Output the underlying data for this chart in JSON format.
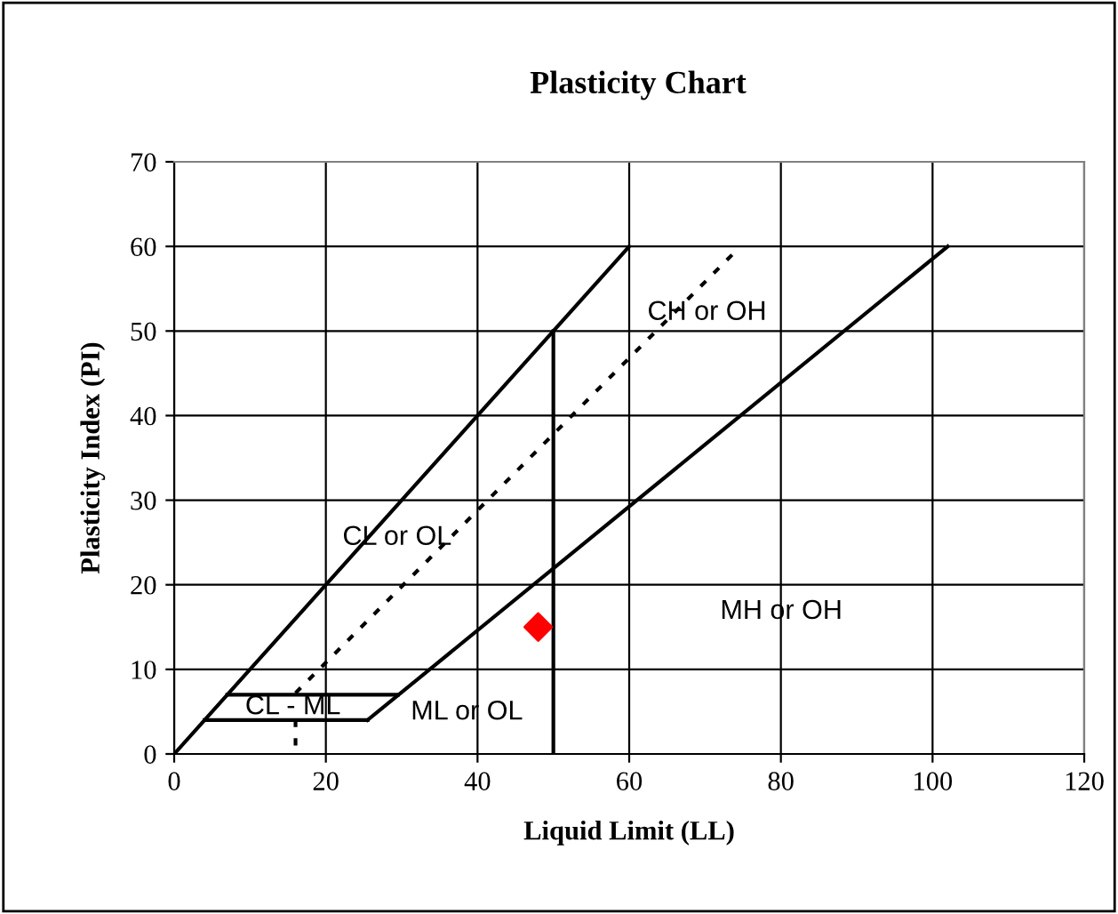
{
  "chart_data": {
    "type": "line",
    "title": "Plasticity Chart",
    "xlabel": "Liquid Limit (LL)",
    "ylabel": "Plasticity Index (PI)",
    "xlim": [
      0,
      120
    ],
    "xticks": [
      0,
      20,
      40,
      60,
      80,
      100,
      120
    ],
    "ylim": [
      0,
      70
    ],
    "yticks": [
      0,
      10,
      20,
      30,
      40,
      50,
      60,
      70
    ],
    "grid": true,
    "legend": false,
    "series": [
      {
        "type": "line",
        "color": "#000000",
        "line_style": "solid",
        "marker": "none",
        "x": [
          0,
          60
        ],
        "values": [
          0,
          60
        ]
      },
      {
        "type": "line",
        "color": "#000000",
        "line_style": "solid",
        "marker": "none",
        "x": [
          4,
          25.5
        ],
        "values": [
          4,
          4
        ]
      },
      {
        "type": "line",
        "color": "#000000",
        "line_style": "solid",
        "marker": "none",
        "x": [
          7,
          29.5
        ],
        "values": [
          7,
          7
        ]
      },
      {
        "type": "line",
        "color": "#000000",
        "line_style": "solid",
        "marker": "none",
        "x": [
          25.5,
          102
        ],
        "values": [
          4,
          60
        ]
      },
      {
        "type": "line",
        "color": "#000000",
        "line_style": "solid",
        "marker": "none",
        "x": [
          50,
          50
        ],
        "values": [
          0,
          50
        ]
      },
      {
        "type": "line",
        "color": "#000000",
        "line_style": "dotted",
        "marker": "none",
        "x": [
          16,
          74
        ],
        "values": [
          7.2,
          59.4
        ]
      },
      {
        "type": "line",
        "color": "#000000",
        "line_style": "dotted",
        "marker": "none",
        "x": [
          16,
          16
        ],
        "values": [
          1,
          4
        ]
      },
      {
        "type": "scatter",
        "color": "#ff0000",
        "marker": "diamond",
        "x": [
          48
        ],
        "values": [
          15
        ]
      }
    ],
    "annotations": [
      "CH or OH",
      "CL or OL",
      "MH or OH",
      "CL - ML",
      "ML or OL"
    ]
  }
}
